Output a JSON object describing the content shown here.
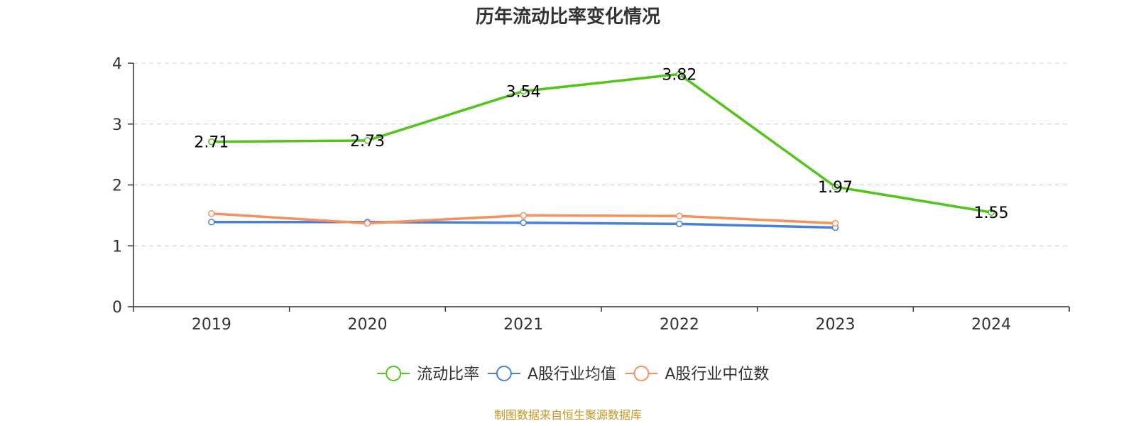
{
  "chart_data": {
    "type": "line",
    "title": "历年流动比率变化情况",
    "categories": [
      "2019",
      "2020",
      "2021",
      "2022",
      "2023",
      "2024"
    ],
    "ylim": [
      0,
      4
    ],
    "yticks": [
      0,
      1,
      2,
      3,
      4
    ],
    "grid": true,
    "legend_position": "bottom",
    "series": [
      {
        "name": "流动比率",
        "color": "#52c41a",
        "values": [
          2.71,
          2.73,
          3.54,
          3.82,
          1.97,
          1.55
        ],
        "labels": [
          "2.71",
          "2.73",
          "3.54",
          "3.82",
          "1.97",
          "1.55"
        ],
        "show_labels": true
      },
      {
        "name": "A股行业均值",
        "color": "#4a7fdc",
        "values": [
          1.39,
          1.39,
          1.38,
          1.36,
          1.3,
          null
        ],
        "show_labels": false
      },
      {
        "name": "A股行业中位数",
        "color": "#f5915c",
        "values": [
          1.53,
          1.37,
          1.5,
          1.49,
          1.37,
          null
        ],
        "show_labels": false
      }
    ],
    "source": "制图数据来自恒生聚源数据库"
  }
}
